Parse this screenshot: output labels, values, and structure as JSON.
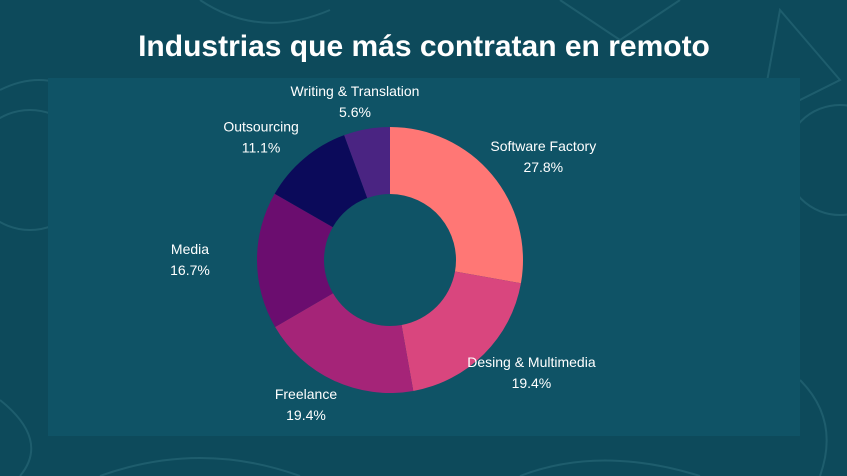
{
  "chart_data": {
    "type": "pie",
    "title": "Industrias que más contratan en remoto",
    "categories": [
      "Software Factory",
      "Desing & Multimedia",
      "Freelance",
      "Media",
      "Outsourcing",
      "Writing & Translation"
    ],
    "values": [
      27.8,
      19.4,
      19.4,
      16.7,
      11.1,
      5.6
    ],
    "value_labels": [
      "27.8%",
      "19.4%",
      "19.4%",
      "16.7%",
      "11.1%",
      "5.6%"
    ],
    "colors": [
      "#ff7775",
      "#d9467e",
      "#a52478",
      "#6b0d6f",
      "#0b0a5a",
      "#4a2482"
    ]
  }
}
